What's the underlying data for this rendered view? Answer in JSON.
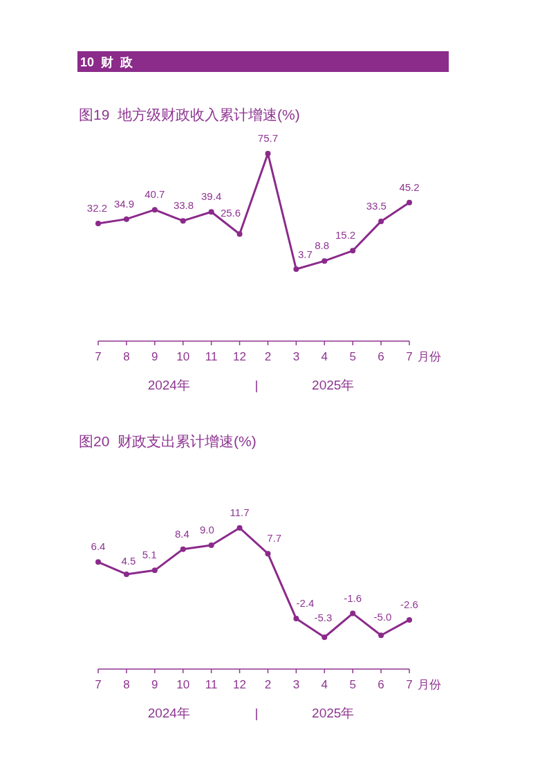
{
  "chart_data": [
    {
      "type": "line",
      "title": "图19  地方级财政收入累计增速(%)",
      "xlabel": "月份",
      "categories": [
        "7",
        "8",
        "9",
        "10",
        "11",
        "12",
        "2",
        "3",
        "4",
        "5",
        "6",
        "7"
      ],
      "series": [
        {
          "color": "#8b2a8b",
          "values": [
            32.2,
            34.9,
            40.7,
            33.8,
            39.4,
            25.6,
            75.7,
            3.7,
            8.8,
            15.2,
            33.5,
            45.2
          ]
        }
      ],
      "marker": "circle",
      "data_labels": true,
      "annotations": [
        "10  财  政",
        "2024年",
        "|",
        "2025年"
      ]
    },
    {
      "type": "line",
      "title": "图20  财政支出累计增速(%)",
      "xlabel": "月份",
      "categories": [
        "7",
        "8",
        "9",
        "10",
        "11",
        "12",
        "2",
        "3",
        "4",
        "5",
        "6",
        "7"
      ],
      "series": [
        {
          "color": "#8b2a8b",
          "values": [
            6.4,
            4.5,
            5.1,
            8.4,
            9.0,
            11.7,
            7.7,
            -2.4,
            -5.3,
            -1.6,
            -5.0,
            -2.6
          ],
          "value_labels": [
            "6.4",
            "4.5",
            "5.1",
            "8.4",
            "9.0",
            "11.7",
            "7.7",
            "-2.4",
            "-5.3",
            "-1.6",
            "-5.0",
            "-2.6"
          ]
        }
      ],
      "marker": "circle",
      "annotations": [
        "2024年",
        "|",
        "2025年"
      ]
    }
  ]
}
